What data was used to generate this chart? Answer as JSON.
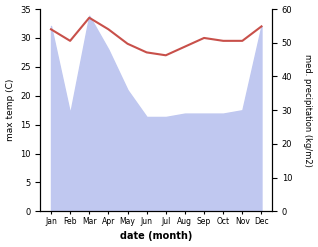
{
  "months": [
    "Jan",
    "Feb",
    "Mar",
    "Apr",
    "May",
    "Jun",
    "Jul",
    "Aug",
    "Sep",
    "Oct",
    "Nov",
    "Dec"
  ],
  "max_temp": [
    31.5,
    29.5,
    33.5,
    31.5,
    29.0,
    27.5,
    27.0,
    28.5,
    30.0,
    29.5,
    29.5,
    32.0
  ],
  "precipitation": [
    55,
    29,
    58,
    48,
    36,
    28,
    28,
    29,
    29,
    29,
    30,
    55
  ],
  "temp_color": "#c8504a",
  "precip_fill_color": "#c0c8f0",
  "temp_ylim": [
    0,
    35
  ],
  "precip_ylim": [
    0,
    60
  ],
  "temp_yticks": [
    0,
    5,
    10,
    15,
    20,
    25,
    30,
    35
  ],
  "precip_yticks": [
    0,
    10,
    20,
    30,
    40,
    50,
    60
  ],
  "xlabel": "date (month)",
  "ylabel_left": "max temp (C)",
  "ylabel_right": "med. precipitation (kg/m2)",
  "bg_color": "#ffffff"
}
